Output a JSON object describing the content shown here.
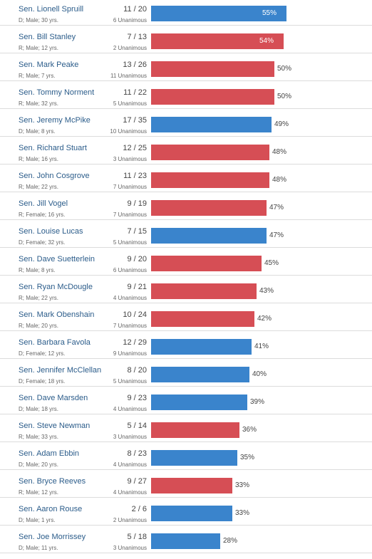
{
  "colors": {
    "D": "#3a84cc",
    "R": "#d64e55"
  },
  "chart_data": {
    "type": "bar",
    "orientation": "horizontal",
    "xlim": [
      0,
      100
    ],
    "rows": [
      {
        "name": "Sen. Lionell Spruill",
        "party": "D",
        "meta": "D; Male; 30 yrs.",
        "ratio": "11 / 20",
        "unanimous": "6 Unanimous",
        "value": 55,
        "label": "55%"
      },
      {
        "name": "Sen. Bill Stanley",
        "party": "R",
        "meta": "R; Male; 12 yrs.",
        "ratio": "7 / 13",
        "unanimous": "2 Unanimous",
        "value": 54,
        "label": "54%"
      },
      {
        "name": "Sen. Mark Peake",
        "party": "R",
        "meta": "R; Male; 7 yrs.",
        "ratio": "13 / 26",
        "unanimous": "11 Unanimous",
        "value": 50,
        "label": "50%"
      },
      {
        "name": "Sen. Tommy Norment",
        "party": "R",
        "meta": "R; Male; 32 yrs.",
        "ratio": "11 / 22",
        "unanimous": "5 Unanimous",
        "value": 50,
        "label": "50%"
      },
      {
        "name": "Sen. Jeremy McPike",
        "party": "D",
        "meta": "D; Male; 8 yrs.",
        "ratio": "17 / 35",
        "unanimous": "10 Unanimous",
        "value": 49,
        "label": "49%"
      },
      {
        "name": "Sen. Richard Stuart",
        "party": "R",
        "meta": "R; Male; 16 yrs.",
        "ratio": "12 / 25",
        "unanimous": "3 Unanimous",
        "value": 48,
        "label": "48%"
      },
      {
        "name": "Sen. John Cosgrove",
        "party": "R",
        "meta": "R; Male; 22 yrs.",
        "ratio": "11 / 23",
        "unanimous": "7 Unanimous",
        "value": 48,
        "label": "48%"
      },
      {
        "name": "Sen. Jill Vogel",
        "party": "R",
        "meta": "R; Female; 16 yrs.",
        "ratio": "9 / 19",
        "unanimous": "7 Unanimous",
        "value": 47,
        "label": "47%"
      },
      {
        "name": "Sen. Louise Lucas",
        "party": "D",
        "meta": "D; Female; 32 yrs.",
        "ratio": "7 / 15",
        "unanimous": "5 Unanimous",
        "value": 47,
        "label": "47%"
      },
      {
        "name": "Sen. Dave Suetterlein",
        "party": "R",
        "meta": "R; Male; 8 yrs.",
        "ratio": "9 / 20",
        "unanimous": "6 Unanimous",
        "value": 45,
        "label": "45%"
      },
      {
        "name": "Sen. Ryan McDougle",
        "party": "R",
        "meta": "R; Male; 22 yrs.",
        "ratio": "9 / 21",
        "unanimous": "4 Unanimous",
        "value": 43,
        "label": "43%"
      },
      {
        "name": "Sen. Mark Obenshain",
        "party": "R",
        "meta": "R; Male; 20 yrs.",
        "ratio": "10 / 24",
        "unanimous": "7 Unanimous",
        "value": 42,
        "label": "42%"
      },
      {
        "name": "Sen. Barbara Favola",
        "party": "D",
        "meta": "D; Female; 12 yrs.",
        "ratio": "12 / 29",
        "unanimous": "9 Unanimous",
        "value": 41,
        "label": "41%"
      },
      {
        "name": "Sen. Jennifer McClellan",
        "party": "D",
        "meta": "D; Female; 18 yrs.",
        "ratio": "8 / 20",
        "unanimous": "5 Unanimous",
        "value": 40,
        "label": "40%"
      },
      {
        "name": "Sen. Dave Marsden",
        "party": "D",
        "meta": "D; Male; 18 yrs.",
        "ratio": "9 / 23",
        "unanimous": "4 Unanimous",
        "value": 39,
        "label": "39%"
      },
      {
        "name": "Sen. Steve Newman",
        "party": "R",
        "meta": "R; Male; 33 yrs.",
        "ratio": "5 / 14",
        "unanimous": "3 Unanimous",
        "value": 36,
        "label": "36%"
      },
      {
        "name": "Sen. Adam Ebbin",
        "party": "D",
        "meta": "D; Male; 20 yrs.",
        "ratio": "8 / 23",
        "unanimous": "4 Unanimous",
        "value": 35,
        "label": "35%"
      },
      {
        "name": "Sen. Bryce Reeves",
        "party": "R",
        "meta": "R; Male; 12 yrs.",
        "ratio": "9 / 27",
        "unanimous": "4 Unanimous",
        "value": 33,
        "label": "33%"
      },
      {
        "name": "Sen. Aaron Rouse",
        "party": "D",
        "meta": "D; Male; 1 yrs.",
        "ratio": "2 / 6",
        "unanimous": "2 Unanimous",
        "value": 33,
        "label": "33%"
      },
      {
        "name": "Sen. Joe Morrissey",
        "party": "D",
        "meta": "D; Male; 11 yrs.",
        "ratio": "5 / 18",
        "unanimous": "3 Unanimous",
        "value": 28,
        "label": "28%"
      }
    ]
  }
}
